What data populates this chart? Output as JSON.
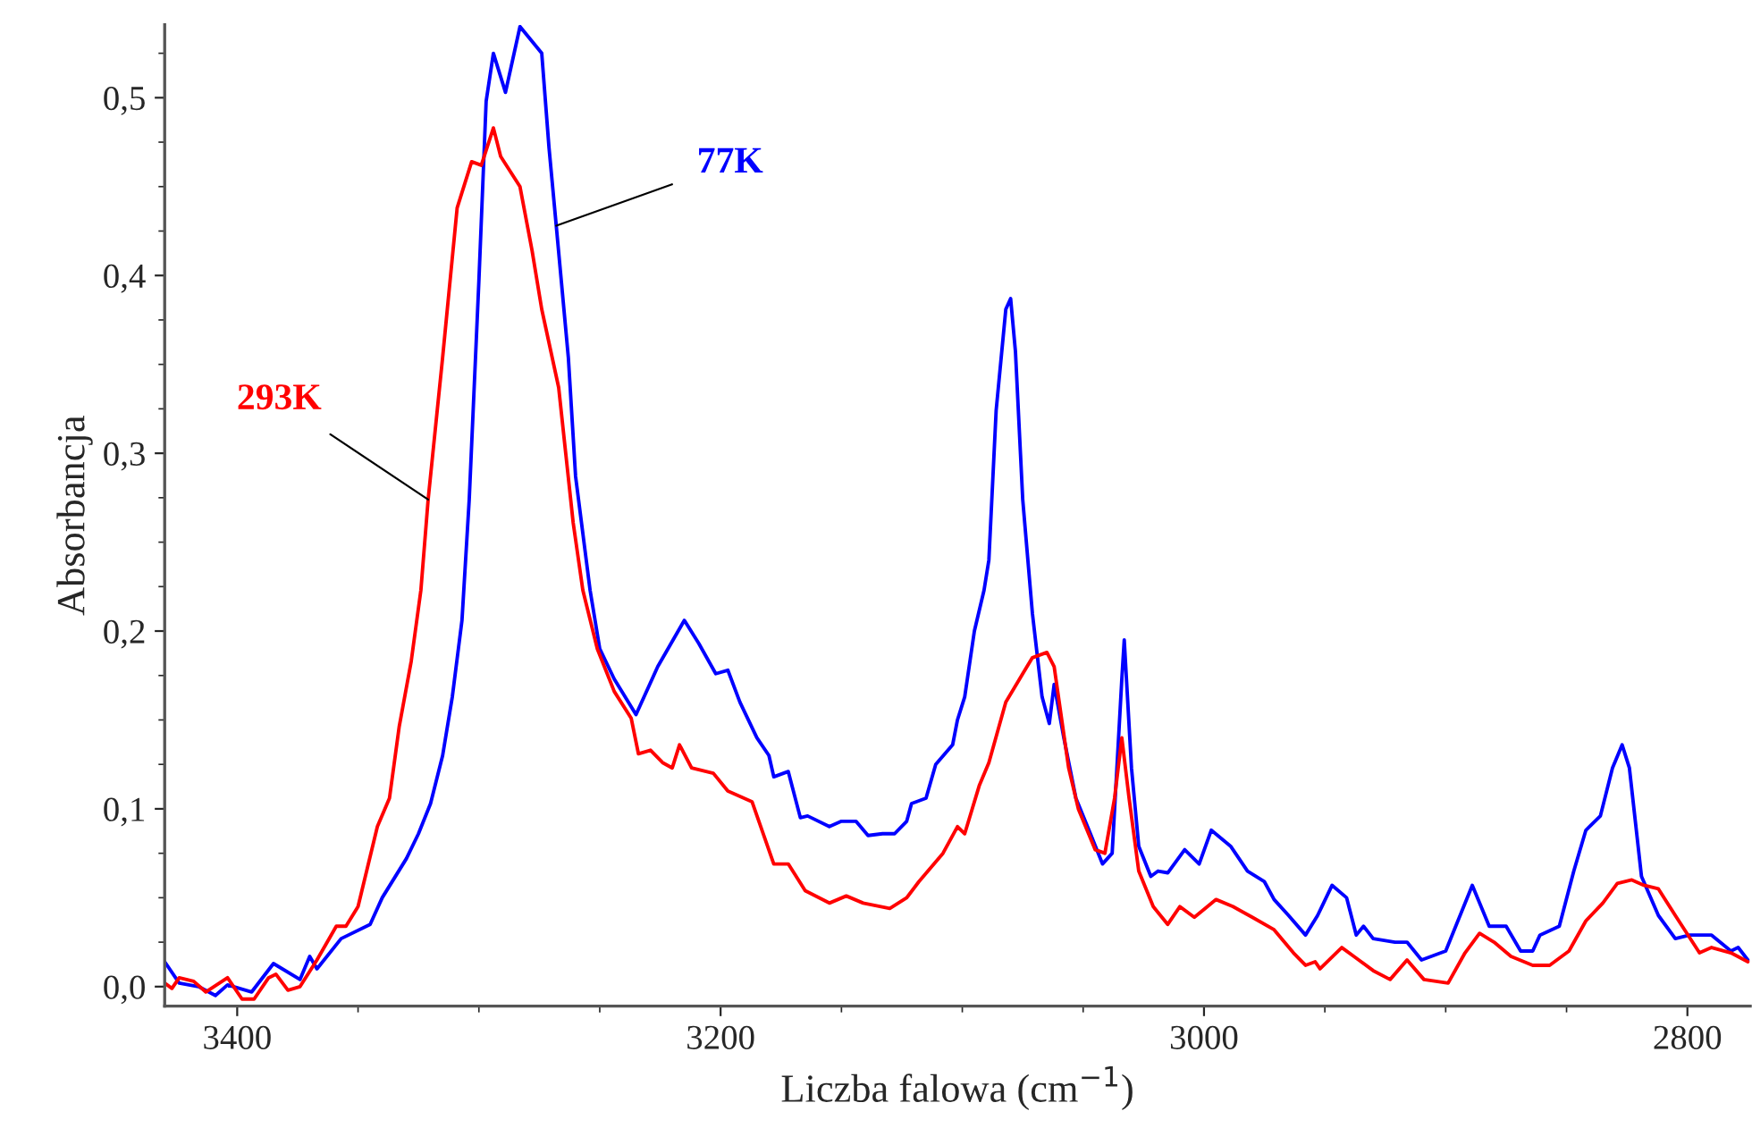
{
  "chart_data": {
    "type": "line",
    "xlabel": "Liczba falowa (cm$^{−1}$)",
    "ylabel": "Absorbancja",
    "xlim": [
      3430,
      2774
    ],
    "ylim": [
      -0.011,
      0.541
    ],
    "xticks": [
      3400,
      3200,
      3000,
      2800
    ],
    "yticks": [
      {
        "value": 0,
        "label": "0,0"
      },
      {
        "value": 0.1,
        "label": "0,1"
      },
      {
        "value": 0.2,
        "label": "0,2"
      },
      {
        "value": 0.3,
        "label": "0,3"
      },
      {
        "value": 0.4,
        "label": "0,4"
      },
      {
        "value": 0.5,
        "label": "0,5"
      }
    ],
    "grid": false,
    "legend": false,
    "line_style": "solid",
    "marker": "none",
    "series": [
      {
        "name": "77K",
        "color": "#0000ff",
        "x": [
          3430,
          3424,
          3416,
          3409,
          3404,
          3394,
          3385,
          3374,
          3370,
          3367,
          3357,
          3345,
          3340,
          3330,
          3325,
          3320,
          3315,
          3311,
          3307,
          3304,
          3300,
          3297,
          3294,
          3289,
          3283,
          3274,
          3271,
          3268,
          3263,
          3260,
          3254,
          3250,
          3244,
          3235,
          3226,
          3215,
          3209,
          3202,
          3197,
          3192,
          3185,
          3180,
          3178,
          3172,
          3167,
          3164,
          3155,
          3150,
          3144,
          3139,
          3133,
          3128,
          3123,
          3121,
          3115,
          3111,
          3104,
          3102,
          3099,
          3095,
          3091,
          3089,
          3086,
          3082,
          3080,
          3078,
          3075,
          3071,
          3067,
          3064,
          3062,
          3058,
          3053,
          3047,
          3042,
          3038,
          3034,
          3033,
          3030,
          3027,
          3022,
          3019,
          3015,
          3008,
          3002,
          2997,
          2989,
          2982,
          2975,
          2971,
          2965,
          2958,
          2953,
          2947,
          2941,
          2937,
          2934,
          2930,
          2921,
          2916,
          2910,
          2900,
          2889,
          2882,
          2875,
          2869,
          2864,
          2861,
          2853,
          2847,
          2842,
          2836,
          2831,
          2827,
          2824,
          2819,
          2812,
          2805,
          2799,
          2790,
          2782,
          2779,
          2775
        ],
        "values": [
          0.014,
          0.002,
          0.0,
          -0.005,
          0.001,
          -0.003,
          0.013,
          0.004,
          0.017,
          0.01,
          0.027,
          0.035,
          0.05,
          0.072,
          0.086,
          0.103,
          0.13,
          0.163,
          0.206,
          0.274,
          0.397,
          0.498,
          0.525,
          0.503,
          0.54,
          0.525,
          0.472,
          0.428,
          0.354,
          0.287,
          0.223,
          0.19,
          0.173,
          0.153,
          0.18,
          0.206,
          0.193,
          0.176,
          0.178,
          0.16,
          0.14,
          0.13,
          0.118,
          0.121,
          0.095,
          0.096,
          0.09,
          0.093,
          0.093,
          0.085,
          0.086,
          0.086,
          0.093,
          0.103,
          0.106,
          0.125,
          0.136,
          0.15,
          0.163,
          0.2,
          0.223,
          0.24,
          0.324,
          0.381,
          0.387,
          0.357,
          0.274,
          0.21,
          0.163,
          0.148,
          0.17,
          0.14,
          0.106,
          0.086,
          0.069,
          0.075,
          0.173,
          0.195,
          0.123,
          0.079,
          0.062,
          0.065,
          0.064,
          0.077,
          0.069,
          0.088,
          0.079,
          0.065,
          0.059,
          0.049,
          0.04,
          0.029,
          0.04,
          0.057,
          0.05,
          0.029,
          0.034,
          0.027,
          0.025,
          0.025,
          0.015,
          0.02,
          0.057,
          0.034,
          0.034,
          0.02,
          0.02,
          0.029,
          0.034,
          0.065,
          0.088,
          0.096,
          0.123,
          0.136,
          0.123,
          0.062,
          0.04,
          0.027,
          0.029,
          0.029,
          0.02,
          0.022,
          0.015
        ]
      },
      {
        "name": "293K",
        "color": "#ff0000",
        "x": [
          3430,
          3427,
          3424,
          3418,
          3413,
          3404,
          3398,
          3393,
          3387,
          3384,
          3379,
          3374,
          3367,
          3359,
          3355,
          3350,
          3342,
          3337,
          3333,
          3328,
          3324,
          3321,
          3315,
          3309,
          3303,
          3299,
          3294,
          3291,
          3283,
          3278,
          3274,
          3267,
          3261,
          3257,
          3251,
          3244,
          3237,
          3234,
          3229,
          3224,
          3220,
          3217,
          3212,
          3203,
          3197,
          3187,
          3178,
          3172,
          3165,
          3155,
          3148,
          3141,
          3130,
          3123,
          3118,
          3108,
          3102,
          3099,
          3093,
          3089,
          3082,
          3075,
          3071,
          3065,
          3062,
          3056,
          3052,
          3045,
          3041,
          3037,
          3034,
          3031,
          3027,
          3021,
          3015,
          3010,
          3004,
          2995,
          2988,
          2980,
          2971,
          2963,
          2958,
          2954,
          2952,
          2943,
          2938,
          2930,
          2923,
          2916,
          2909,
          2899,
          2892,
          2886,
          2880,
          2873,
          2864,
          2857,
          2849,
          2842,
          2835,
          2829,
          2823,
          2818,
          2812,
          2805,
          2795,
          2790,
          2782,
          2775
        ],
        "values": [
          0.002,
          -0.001,
          0.005,
          0.003,
          -0.003,
          0.005,
          -0.007,
          -0.007,
          0.005,
          0.007,
          -0.002,
          0.0,
          0.015,
          0.034,
          0.034,
          0.045,
          0.09,
          0.106,
          0.146,
          0.183,
          0.223,
          0.274,
          0.354,
          0.438,
          0.464,
          0.462,
          0.483,
          0.467,
          0.45,
          0.414,
          0.381,
          0.337,
          0.261,
          0.223,
          0.19,
          0.166,
          0.151,
          0.131,
          0.133,
          0.126,
          0.123,
          0.136,
          0.123,
          0.12,
          0.11,
          0.104,
          0.069,
          0.069,
          0.054,
          0.047,
          0.051,
          0.047,
          0.044,
          0.05,
          0.059,
          0.075,
          0.09,
          0.086,
          0.113,
          0.126,
          0.16,
          0.176,
          0.185,
          0.188,
          0.18,
          0.123,
          0.1,
          0.077,
          0.075,
          0.106,
          0.14,
          0.106,
          0.065,
          0.045,
          0.035,
          0.045,
          0.039,
          0.049,
          0.045,
          0.039,
          0.032,
          0.019,
          0.012,
          0.014,
          0.01,
          0.022,
          0.017,
          0.009,
          0.004,
          0.015,
          0.004,
          0.002,
          0.019,
          0.03,
          0.025,
          0.017,
          0.012,
          0.012,
          0.02,
          0.037,
          0.047,
          0.058,
          0.06,
          0.057,
          0.055,
          0.04,
          0.019,
          0.022,
          0.019,
          0.014
        ]
      }
    ]
  }
}
